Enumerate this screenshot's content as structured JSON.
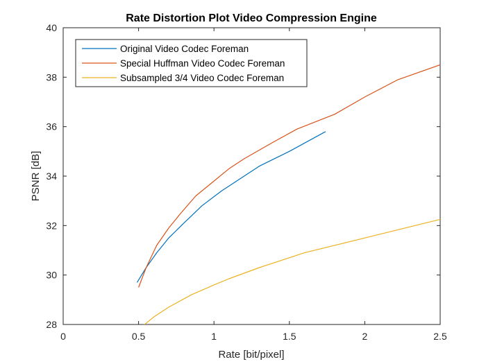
{
  "chart_data": {
    "type": "line",
    "title": "Rate Distortion Plot Video Compression Engine",
    "xlabel": "Rate [bit/pixel]",
    "ylabel": "PSNR [dB]",
    "xlim": [
      0,
      2.5
    ],
    "ylim": [
      28,
      40
    ],
    "xticks": [
      "0",
      "0.5",
      "1",
      "1.5",
      "2",
      "2.5"
    ],
    "yticks": [
      "28",
      "30",
      "32",
      "34",
      "36",
      "38",
      "40"
    ],
    "grid": false,
    "legend_position": "top-left",
    "series": [
      {
        "name": "Original Video Codec Foreman",
        "color": "#0072BD",
        "x": [
          0.49,
          0.55,
          0.62,
          0.7,
          0.8,
          0.92,
          1.05,
          1.15,
          1.3,
          1.5,
          1.74
        ],
        "y": [
          29.7,
          30.3,
          30.9,
          31.5,
          32.1,
          32.8,
          33.4,
          33.8,
          34.4,
          35.0,
          35.8
        ]
      },
      {
        "name": "Special Huffman Video Codec Foreman",
        "color": "#D95319",
        "x": [
          0.5,
          0.55,
          0.62,
          0.7,
          0.78,
          0.88,
          1.0,
          1.1,
          1.2,
          1.4,
          1.55,
          1.8,
          2.0,
          2.22,
          2.5
        ],
        "y": [
          29.5,
          30.3,
          31.2,
          31.9,
          32.5,
          33.2,
          33.8,
          34.3,
          34.7,
          35.4,
          35.9,
          36.5,
          37.2,
          37.9,
          38.5
        ]
      },
      {
        "name": "Subsampled 3/4 Video Codec Foreman",
        "color": "#EDB120",
        "x": [
          0.5,
          0.6,
          0.7,
          0.85,
          1.0,
          1.1,
          1.3,
          1.6,
          2.0,
          2.5
        ],
        "y": [
          27.8,
          28.3,
          28.7,
          29.2,
          29.6,
          29.85,
          30.3,
          30.9,
          31.5,
          32.25
        ]
      }
    ]
  }
}
